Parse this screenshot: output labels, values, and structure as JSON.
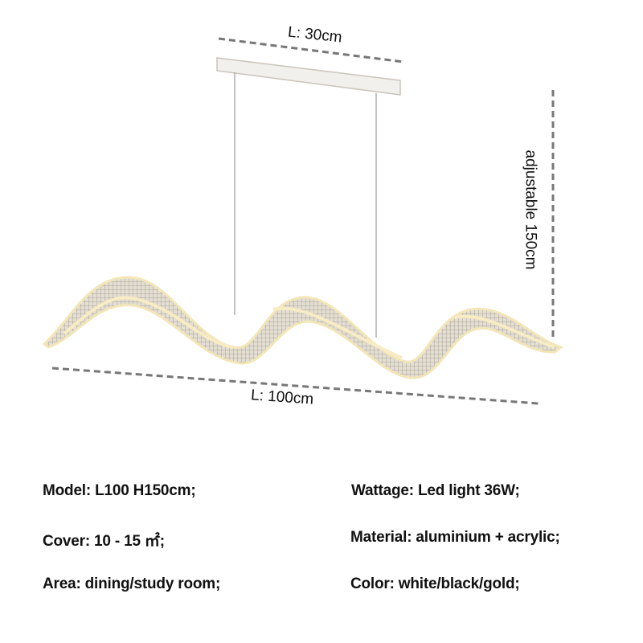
{
  "dimensions": {
    "canopy_length": "L: 30cm",
    "lamp_length": "L: 100cm",
    "height": "adjustable 150cm"
  },
  "specs": {
    "model": "Model: L100 H150cm;",
    "cover": "Cover: 10 - 15 ㎡;",
    "area": "Area: dining/study room;",
    "wattage": "Wattage: Led light 36W;",
    "material": "Material: aluminium + acrylic;",
    "color": "Color: white/black/gold;"
  },
  "colors": {
    "panel": "#cfc9bb",
    "glow": "#f3e6b8",
    "dimension_line": "#777777"
  }
}
